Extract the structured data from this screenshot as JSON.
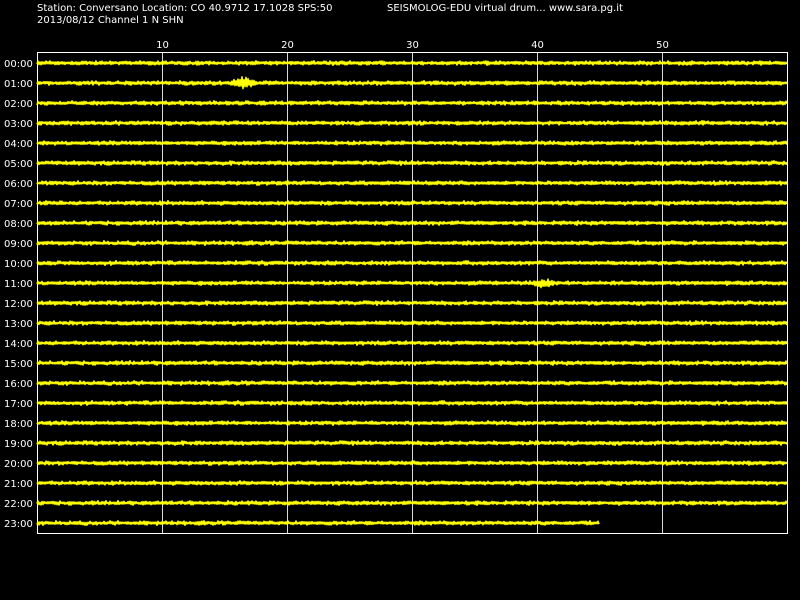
{
  "header": {
    "station_line": "Station: Conversano Location: CO 40.9712 17.1028 SPS:50",
    "app_line": "SEISMOLOG-EDU virtual drum... www.sara.pg.it",
    "date_line": "2013/08/12  Channel 1 N SHN"
  },
  "colors": {
    "background": "#000000",
    "trace": "#ffff00",
    "grid": "#ffffff",
    "text": "#ffffff"
  },
  "chart_data": {
    "type": "line",
    "title": "",
    "xlabel": "",
    "ylabel": "",
    "xlim": [
      0,
      60
    ],
    "x_ticks": [
      10,
      20,
      30,
      40,
      50
    ],
    "grid": true,
    "rows": [
      {
        "label": "00:00",
        "end_minute": 60,
        "events": []
      },
      {
        "label": "01:00",
        "end_minute": 60,
        "events": [
          {
            "minute": 16.5,
            "amplitude": 1.0
          }
        ]
      },
      {
        "label": "02:00",
        "end_minute": 60,
        "events": []
      },
      {
        "label": "03:00",
        "end_minute": 60,
        "events": []
      },
      {
        "label": "04:00",
        "end_minute": 60,
        "events": []
      },
      {
        "label": "05:00",
        "end_minute": 60,
        "events": []
      },
      {
        "label": "06:00",
        "end_minute": 60,
        "events": []
      },
      {
        "label": "07:00",
        "end_minute": 60,
        "events": []
      },
      {
        "label": "08:00",
        "end_minute": 60,
        "events": []
      },
      {
        "label": "09:00",
        "end_minute": 60,
        "events": []
      },
      {
        "label": "10:00",
        "end_minute": 60,
        "events": []
      },
      {
        "label": "11:00",
        "end_minute": 60,
        "events": [
          {
            "minute": 40.5,
            "amplitude": 0.6
          }
        ]
      },
      {
        "label": "12:00",
        "end_minute": 60,
        "events": []
      },
      {
        "label": "13:00",
        "end_minute": 60,
        "events": []
      },
      {
        "label": "14:00",
        "end_minute": 60,
        "events": []
      },
      {
        "label": "15:00",
        "end_minute": 60,
        "events": []
      },
      {
        "label": "16:00",
        "end_minute": 60,
        "events": []
      },
      {
        "label": "17:00",
        "end_minute": 60,
        "events": []
      },
      {
        "label": "18:00",
        "end_minute": 60,
        "events": []
      },
      {
        "label": "19:00",
        "end_minute": 60,
        "events": []
      },
      {
        "label": "20:00",
        "end_minute": 60,
        "events": []
      },
      {
        "label": "21:00",
        "end_minute": 60,
        "events": []
      },
      {
        "label": "22:00",
        "end_minute": 60,
        "events": []
      },
      {
        "label": "23:00",
        "end_minute": 45,
        "events": []
      }
    ]
  }
}
